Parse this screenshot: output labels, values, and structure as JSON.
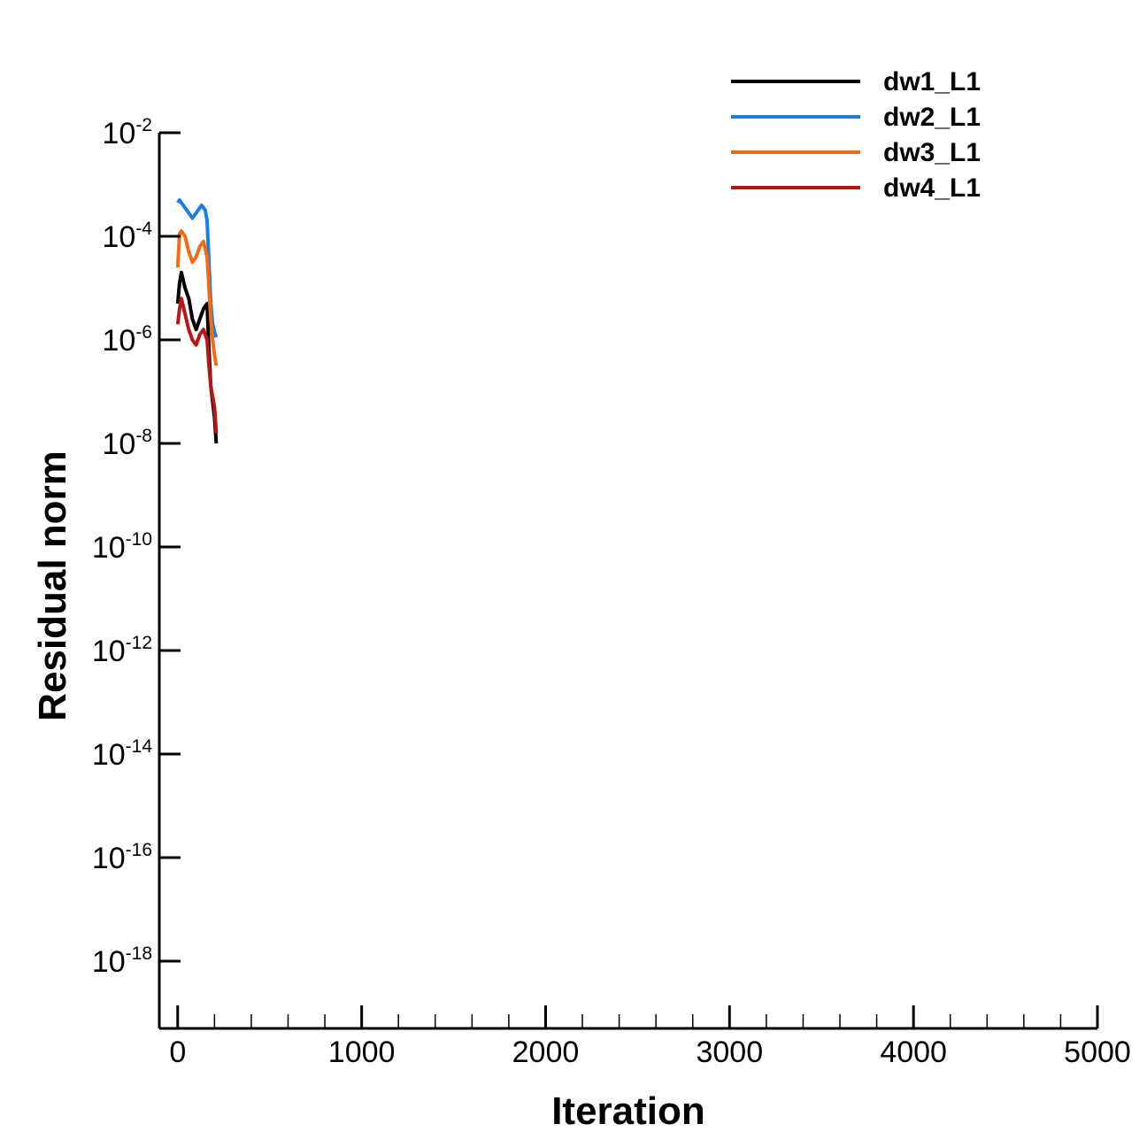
{
  "chart_data": {
    "type": "line",
    "xlabel": "Iteration",
    "ylabel": "Residual norm",
    "xlim": [
      -100,
      5000
    ],
    "ylim_log10": [
      -19.3,
      -2
    ],
    "y_scale": "log",
    "x_ticks": [
      0,
      1000,
      2000,
      3000,
      4000,
      5000
    ],
    "x_tick_labels": [
      "0",
      "1000",
      "2000",
      "3000",
      "4000",
      "5000"
    ],
    "y_ticks_exp": [
      -2,
      -4,
      -6,
      -8,
      -10,
      -12,
      -14,
      -16,
      -18
    ],
    "y_tick_base": "10",
    "y_tick_exponents": [
      "-2",
      "-4",
      "-6",
      "-8",
      "-10",
      "-12",
      "-14",
      "-16",
      "-18"
    ],
    "grid": false,
    "legend_position": "top-right",
    "series": [
      {
        "name": "dw1_L1",
        "color": "#000000",
        "x": [
          0,
          10,
          20,
          40,
          60,
          80,
          100,
          120,
          140,
          160,
          170,
          180,
          190,
          200,
          210
        ],
        "y_log10": [
          -5.3,
          -4.9,
          -4.7,
          -5.0,
          -5.2,
          -5.6,
          -5.8,
          -5.6,
          -5.4,
          -5.3,
          -6.2,
          -6.9,
          -7.2,
          -7.5,
          -8.0
        ]
      },
      {
        "name": "dw2_L1",
        "color": "#1f7fd8",
        "x": [
          0,
          10,
          20,
          40,
          60,
          80,
          100,
          120,
          130,
          140,
          150,
          160,
          170,
          180,
          190,
          200,
          210
        ],
        "y_log10": [
          -3.35,
          -3.3,
          -3.35,
          -3.45,
          -3.55,
          -3.65,
          -3.55,
          -3.45,
          -3.4,
          -3.45,
          -3.5,
          -3.7,
          -4.5,
          -5.3,
          -5.7,
          -5.85,
          -5.95
        ]
      },
      {
        "name": "dw3_L1",
        "color": "#f26b1d",
        "x": [
          0,
          10,
          20,
          40,
          60,
          80,
          100,
          120,
          140,
          160,
          170,
          180,
          190,
          200,
          210
        ],
        "y_log10": [
          -4.6,
          -3.95,
          -3.9,
          -4.0,
          -4.3,
          -4.5,
          -4.4,
          -4.2,
          -4.1,
          -4.4,
          -5.0,
          -5.6,
          -6.0,
          -6.3,
          -6.5
        ]
      },
      {
        "name": "dw4_L1",
        "color": "#b01a1a",
        "x": [
          0,
          10,
          20,
          40,
          60,
          80,
          100,
          120,
          140,
          160,
          170,
          180,
          190,
          200,
          210
        ],
        "y_log10": [
          -5.7,
          -5.4,
          -5.2,
          -5.5,
          -5.8,
          -6.0,
          -6.1,
          -5.9,
          -5.8,
          -6.0,
          -6.5,
          -6.9,
          -7.1,
          -7.3,
          -7.8
        ]
      }
    ]
  }
}
